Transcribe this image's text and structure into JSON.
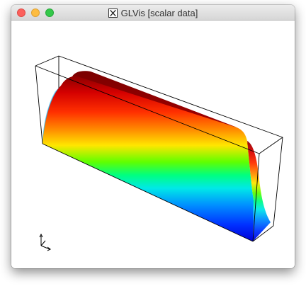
{
  "window": {
    "title": "GLVis [scalar data]",
    "title_icon": "x11-icon"
  },
  "titlebar_buttons": {
    "close_color": "#fc605c",
    "minimize_color": "#fdbc40",
    "maximize_color": "#34c84a"
  },
  "viewport": {
    "background": "#ffffff",
    "bounding_box_color": "#000000",
    "colormap": [
      "#0000ff",
      "#00c0ff",
      "#00ffc0",
      "#40ff00",
      "#ffff00",
      "#ffa000",
      "#ff2000",
      "#a00000"
    ],
    "axes_icon": "axes-triad-icon"
  }
}
